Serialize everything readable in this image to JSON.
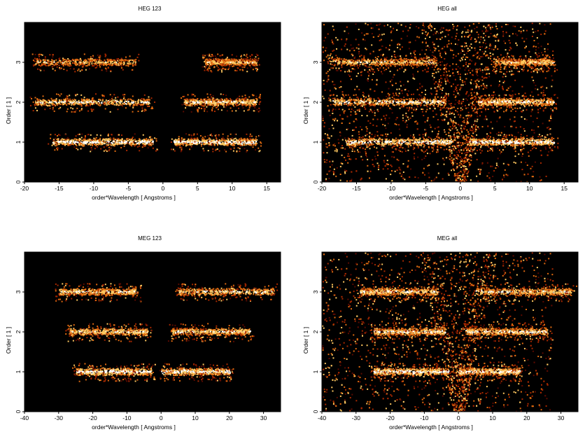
{
  "chart_data": [
    {
      "type": "heatmap",
      "title": "HEG 123",
      "xlabel": "order*Wavelength [ Angstroms ]",
      "ylabel": "Order [ 1 ]",
      "xlim": [
        -20,
        17
      ],
      "ylim": [
        0,
        4
      ],
      "xticks": [
        "-20",
        "-15",
        "-10",
        "-5",
        "0",
        "5",
        "10",
        "15"
      ],
      "yticks": [
        "0",
        "1",
        "2",
        "3"
      ],
      "colormap": [
        "#000000",
        "#5a0a00",
        "#a82800",
        "#e06a10",
        "#ffc860",
        "#ffffff"
      ],
      "bands": [
        {
          "order": 1,
          "x_from": -16,
          "x_to": -1.5,
          "intensity": 0.95
        },
        {
          "order": 1,
          "x_from": 1.5,
          "x_to": 13.5,
          "intensity": 0.95
        },
        {
          "order": 2,
          "x_from": -18.5,
          "x_to": -2,
          "intensity": 0.85
        },
        {
          "order": 2,
          "x_from": 3,
          "x_to": 13.5,
          "intensity": 0.85
        },
        {
          "order": 3,
          "x_from": -18.5,
          "x_to": -4,
          "intensity": 0.75
        },
        {
          "order": 3,
          "x_from": 6,
          "x_to": 13.5,
          "intensity": 0.75
        }
      ],
      "background_wedge": false
    },
    {
      "type": "heatmap",
      "title": "HEG all",
      "xlabel": "order*Wavelength [ Angstroms ]",
      "ylabel": "Order [ 1 ]",
      "xlim": [
        -20,
        17
      ],
      "ylim": [
        0,
        4
      ],
      "xticks": [
        "-20",
        "-15",
        "-10",
        "-5",
        "0",
        "5",
        "10",
        "15"
      ],
      "yticks": [
        "0",
        "1",
        "2",
        "3"
      ],
      "colormap": [
        "#000000",
        "#5a0a00",
        "#a82800",
        "#e06a10",
        "#ffc860",
        "#ffffff"
      ],
      "bands": [
        {
          "order": 1,
          "x_from": -16.5,
          "x_to": -1.2,
          "intensity": 0.95
        },
        {
          "order": 1,
          "x_from": 1.2,
          "x_to": 13.5,
          "intensity": 0.95
        },
        {
          "order": 2,
          "x_from": -18.5,
          "x_to": -2.2,
          "intensity": 0.88
        },
        {
          "order": 2,
          "x_from": 2.5,
          "x_to": 13.5,
          "intensity": 0.88
        },
        {
          "order": 3,
          "x_from": -18.5,
          "x_to": -3.5,
          "intensity": 0.8
        },
        {
          "order": 3,
          "x_from": 5,
          "x_to": 13.5,
          "intensity": 0.8
        }
      ],
      "background_wedge": true
    },
    {
      "type": "heatmap",
      "title": "MEG 123",
      "xlabel": "order*Wavelength [ Angstroms ]",
      "ylabel": "Order [ 1 ]",
      "xlim": [
        -40,
        35
      ],
      "ylim": [
        0,
        4
      ],
      "xticks": [
        "-40",
        "-30",
        "-20",
        "-10",
        "0",
        "10",
        "20",
        "30"
      ],
      "yticks": [
        "0",
        "1",
        "2",
        "3"
      ],
      "colormap": [
        "#000000",
        "#5a0a00",
        "#a82800",
        "#e06a10",
        "#ffc860",
        "#ffffff"
      ],
      "bands": [
        {
          "order": 1,
          "x_from": -25,
          "x_to": -3,
          "intensity": 0.95
        },
        {
          "order": 1,
          "x_from": 0,
          "x_to": 20,
          "intensity": 0.95
        },
        {
          "order": 2,
          "x_from": -27,
          "x_to": -4,
          "intensity": 0.85
        },
        {
          "order": 2,
          "x_from": 3,
          "x_to": 26,
          "intensity": 0.85
        },
        {
          "order": 3,
          "x_from": -30,
          "x_to": -7,
          "intensity": 0.85
        },
        {
          "order": 3,
          "x_from": 5,
          "x_to": 33,
          "intensity": 0.85
        }
      ],
      "background_wedge": false
    },
    {
      "type": "heatmap",
      "title": "MEG all",
      "xlabel": "order*Wavelength [ Angstroms ]",
      "ylabel": "Order [ 1 ]",
      "xlim": [
        -40,
        35
      ],
      "ylim": [
        0,
        4
      ],
      "xticks": [
        "-40",
        "-30",
        "-20",
        "-10",
        "0",
        "10",
        "20",
        "30"
      ],
      "yticks": [
        "0",
        "1",
        "2",
        "3"
      ],
      "colormap": [
        "#000000",
        "#5a0a00",
        "#a82800",
        "#e06a10",
        "#ffc860",
        "#ffffff"
      ],
      "bands": [
        {
          "order": 1,
          "x_from": -25,
          "x_to": -3,
          "intensity": 0.95
        },
        {
          "order": 1,
          "x_from": 0,
          "x_to": 18,
          "intensity": 0.95
        },
        {
          "order": 2,
          "x_from": -25,
          "x_to": -4,
          "intensity": 0.88
        },
        {
          "order": 2,
          "x_from": 2,
          "x_to": 26,
          "intensity": 0.88
        },
        {
          "order": 3,
          "x_from": -29,
          "x_to": -6,
          "intensity": 0.85
        },
        {
          "order": 3,
          "x_from": 5,
          "x_to": 33,
          "intensity": 0.85
        }
      ],
      "background_wedge": true
    }
  ]
}
